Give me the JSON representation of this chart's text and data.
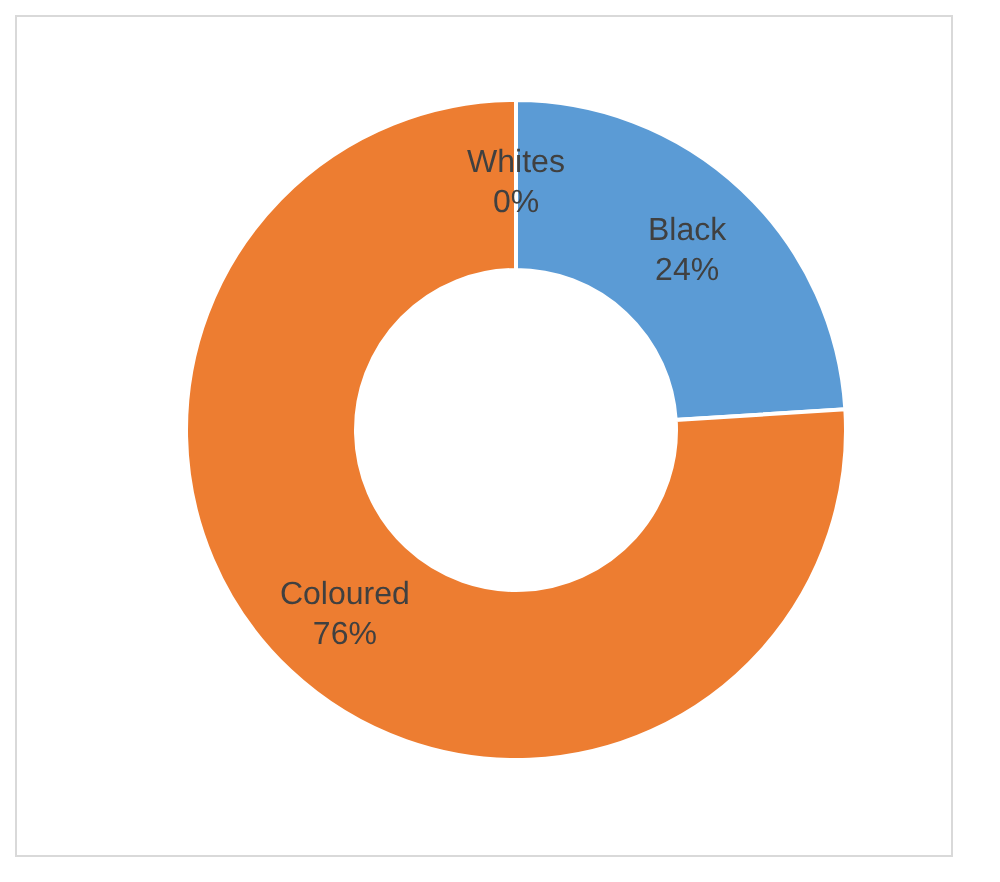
{
  "chart_data": {
    "type": "donut",
    "categories": [
      "Black",
      "Coloured",
      "Whites"
    ],
    "values": [
      24,
      76,
      0
    ],
    "colors": [
      "#5b9bd5",
      "#ed7d31",
      "#a5a5a5"
    ],
    "value_labels": [
      "24%",
      "76%",
      "0%"
    ]
  }
}
